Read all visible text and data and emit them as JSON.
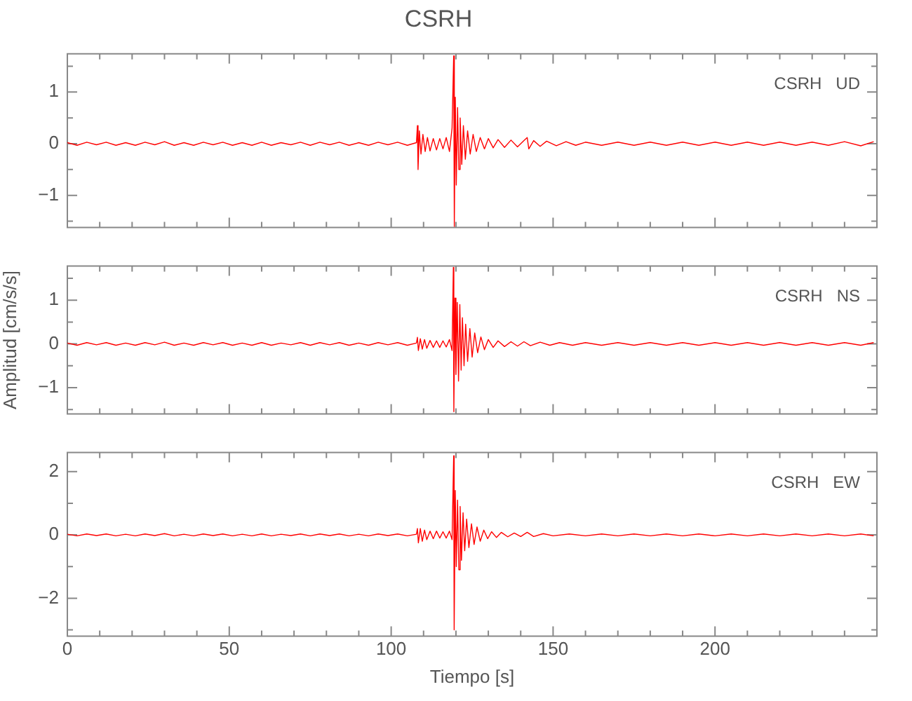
{
  "chart_data": [
    {
      "type": "line",
      "title": "CSRH",
      "annotations": [
        "CSRH   UD"
      ],
      "marker": "none",
      "tick_labels": "y",
      "xlim": [
        0,
        250
      ],
      "xticks": [
        0,
        {
          "value": 10,
          "label": null
        },
        {
          "value": 20,
          "label": null
        },
        {
          "value": 30,
          "label": null
        },
        {
          "value": 40,
          "label": null
        },
        50,
        {
          "value": 60,
          "label": null
        },
        {
          "value": 70,
          "label": null
        },
        {
          "value": 80,
          "label": null
        },
        {
          "value": 90,
          "label": null
        },
        100,
        {
          "value": 110,
          "label": null
        },
        {
          "value": 120,
          "label": null
        },
        {
          "value": 130,
          "label": null
        },
        {
          "value": 140,
          "label": null
        },
        150,
        {
          "value": 160,
          "label": null
        },
        {
          "value": 170,
          "label": null
        },
        {
          "value": 180,
          "label": null
        },
        {
          "value": 190,
          "label": null
        },
        200,
        {
          "value": 210,
          "label": null
        },
        {
          "value": 220,
          "label": null
        },
        {
          "value": 230,
          "label": null
        },
        {
          "value": 240,
          "label": null
        }
      ],
      "ylim": [
        -1.62,
        1.74
      ],
      "yticks": [
        {
          "value": -1.5,
          "label": null
        },
        -1,
        {
          "value": -0.5,
          "label": null
        },
        0,
        {
          "value": 0.5,
          "label": null
        },
        1,
        {
          "value": 1.5,
          "label": null
        }
      ],
      "series": [
        {
          "color": "#ff0000",
          "x": [
            0,
            3,
            6,
            9,
            12,
            15,
            18,
            21,
            24,
            27,
            30,
            33,
            36,
            39,
            42,
            45,
            48,
            51,
            54,
            57,
            60,
            63,
            66,
            69,
            72,
            75,
            78,
            81,
            84,
            87,
            90,
            93,
            96,
            99,
            102,
            105,
            107.8,
            108.1,
            108.3,
            108.7,
            109.2,
            109.8,
            110.5,
            111.2,
            112,
            113,
            114,
            115,
            116,
            117,
            118,
            118.8,
            119.3,
            119.5,
            119.8,
            120.1,
            120.5,
            120.9,
            121.3,
            121.8,
            122.3,
            122.9,
            123.6,
            124.4,
            125.3,
            126.3,
            127.5,
            128.8,
            130,
            131.5,
            133,
            135,
            137,
            139,
            141,
            142,
            142.5,
            144,
            146,
            148,
            151,
            154,
            157,
            160,
            165,
            170,
            175,
            180,
            185,
            190,
            195,
            200,
            205,
            210,
            215,
            220,
            225,
            230,
            235,
            240,
            245,
            249
          ],
          "values": [
            0.02,
            -0.03,
            0.03,
            -0.02,
            0.03,
            -0.03,
            0.02,
            -0.03,
            0.03,
            -0.02,
            0.04,
            -0.03,
            0.02,
            -0.03,
            0.03,
            -0.02,
            0.03,
            -0.03,
            0.02,
            -0.03,
            0.03,
            -0.03,
            0.02,
            -0.02,
            0.03,
            -0.03,
            0.03,
            -0.02,
            0.03,
            -0.03,
            0.02,
            -0.03,
            0.03,
            -0.02,
            0.03,
            -0.03,
            0.02,
            0.35,
            -0.5,
            0.25,
            -0.2,
            0.18,
            -0.15,
            0.12,
            -0.14,
            0.1,
            -0.12,
            0.1,
            -0.1,
            0.12,
            -0.15,
            0.3,
            1.7,
            -1.6,
            0.9,
            -0.8,
            0.7,
            -0.5,
            0.5,
            -0.4,
            0.35,
            -0.3,
            0.25,
            -0.2,
            0.18,
            -0.15,
            0.12,
            -0.1,
            0.1,
            -0.08,
            0.08,
            -0.07,
            0.07,
            -0.06,
            0.06,
            0.12,
            -0.1,
            0.06,
            -0.05,
            0.05,
            -0.04,
            0.04,
            -0.03,
            0.03,
            -0.03,
            0.03,
            -0.03,
            0.03,
            -0.03,
            0.03,
            -0.03,
            0.03,
            -0.03,
            0.03,
            -0.03,
            0.03,
            -0.03,
            0.03,
            -0.03,
            0.04,
            -0.04,
            0.04
          ]
        }
      ]
    },
    {
      "type": "line",
      "ylabel": "Amplitud [cm/s/s]",
      "annotations": [
        "CSRH   NS"
      ],
      "marker": "none",
      "tick_labels": "y",
      "xlim": [
        0,
        250
      ],
      "xticks": [
        0,
        {
          "value": 10,
          "label": null
        },
        {
          "value": 20,
          "label": null
        },
        {
          "value": 30,
          "label": null
        },
        {
          "value": 40,
          "label": null
        },
        50,
        {
          "value": 60,
          "label": null
        },
        {
          "value": 70,
          "label": null
        },
        {
          "value": 80,
          "label": null
        },
        {
          "value": 90,
          "label": null
        },
        100,
        {
          "value": 110,
          "label": null
        },
        {
          "value": 120,
          "label": null
        },
        {
          "value": 130,
          "label": null
        },
        {
          "value": 140,
          "label": null
        },
        150,
        {
          "value": 160,
          "label": null
        },
        {
          "value": 170,
          "label": null
        },
        {
          "value": 180,
          "label": null
        },
        {
          "value": 190,
          "label": null
        },
        200,
        {
          "value": 210,
          "label": null
        },
        {
          "value": 220,
          "label": null
        },
        {
          "value": 230,
          "label": null
        },
        {
          "value": 240,
          "label": null
        }
      ],
      "ylim": [
        -1.6,
        1.78
      ],
      "yticks": [
        {
          "value": -1.5,
          "label": null
        },
        -1,
        {
          "value": -0.5,
          "label": null
        },
        0,
        {
          "value": 0.5,
          "label": null
        },
        1,
        {
          "value": 1.5,
          "label": null
        }
      ],
      "series": [
        {
          "color": "#ff0000",
          "x": [
            0,
            3,
            6,
            9,
            12,
            15,
            18,
            21,
            24,
            27,
            30,
            33,
            36,
            39,
            42,
            45,
            48,
            51,
            54,
            57,
            60,
            63,
            66,
            69,
            72,
            75,
            78,
            81,
            84,
            87,
            90,
            93,
            96,
            99,
            102,
            105,
            107.8,
            108.1,
            108.4,
            109,
            109.6,
            110.3,
            111,
            112,
            113,
            114,
            115,
            116,
            117,
            118,
            118.8,
            119.2,
            119.35,
            119.7,
            120,
            120.4,
            120.8,
            121.2,
            121.6,
            122,
            122.5,
            123,
            123.6,
            124.3,
            125,
            125.8,
            126.7,
            127.7,
            128.8,
            130,
            131.5,
            133,
            135,
            137,
            139,
            141,
            143,
            146,
            149,
            152,
            156,
            160,
            165,
            170,
            175,
            180,
            185,
            190,
            195,
            200,
            205,
            210,
            215,
            220,
            225,
            230,
            235,
            240,
            245,
            249
          ],
          "values": [
            0.02,
            -0.03,
            0.03,
            -0.02,
            0.03,
            -0.03,
            0.02,
            -0.03,
            0.03,
            -0.02,
            0.04,
            -0.03,
            0.02,
            -0.03,
            0.03,
            -0.02,
            0.03,
            -0.03,
            0.02,
            -0.03,
            0.03,
            -0.03,
            0.02,
            -0.02,
            0.03,
            -0.03,
            0.03,
            -0.02,
            0.03,
            -0.03,
            0.02,
            -0.03,
            0.03,
            -0.02,
            0.03,
            -0.03,
            0.02,
            0.15,
            -0.15,
            0.12,
            -0.12,
            0.1,
            -0.1,
            0.08,
            -0.08,
            0.07,
            -0.08,
            0.07,
            -0.07,
            0.1,
            -0.15,
            1.75,
            -1.55,
            1.05,
            -0.7,
            0.95,
            -0.85,
            0.9,
            -0.6,
            0.6,
            -0.5,
            0.45,
            -0.4,
            0.35,
            -0.3,
            0.25,
            -0.2,
            0.16,
            -0.13,
            0.1,
            -0.08,
            0.07,
            -0.06,
            0.05,
            -0.05,
            0.05,
            -0.04,
            0.04,
            -0.03,
            0.03,
            -0.03,
            0.03,
            -0.03,
            0.03,
            -0.03,
            0.03,
            -0.03,
            0.03,
            -0.03,
            0.03,
            -0.03,
            0.03,
            -0.03,
            0.03,
            -0.03,
            0.03,
            -0.03,
            0.03,
            -0.03,
            0.03
          ]
        }
      ]
    },
    {
      "type": "line",
      "xlabel": "Tiempo [s]",
      "annotations": [
        "CSRH   EW"
      ],
      "marker": "none",
      "xlim": [
        0,
        250
      ],
      "xticks": [
        0,
        {
          "value": 10,
          "label": null
        },
        {
          "value": 20,
          "label": null
        },
        {
          "value": 30,
          "label": null
        },
        {
          "value": 40,
          "label": null
        },
        50,
        {
          "value": 60,
          "label": null
        },
        {
          "value": 70,
          "label": null
        },
        {
          "value": 80,
          "label": null
        },
        {
          "value": 90,
          "label": null
        },
        100,
        {
          "value": 110,
          "label": null
        },
        {
          "value": 120,
          "label": null
        },
        {
          "value": 130,
          "label": null
        },
        {
          "value": 140,
          "label": null
        },
        150,
        {
          "value": 160,
          "label": null
        },
        {
          "value": 170,
          "label": null
        },
        {
          "value": 180,
          "label": null
        },
        {
          "value": 190,
          "label": null
        },
        200,
        {
          "value": 210,
          "label": null
        },
        {
          "value": 220,
          "label": null
        },
        {
          "value": 230,
          "label": null
        },
        {
          "value": 240,
          "label": null
        }
      ],
      "ylim": [
        -3.2,
        2.6
      ],
      "yticks": [
        {
          "value": -3,
          "label": null
        },
        -2,
        {
          "value": -1,
          "label": null
        },
        0,
        {
          "value": 1,
          "label": null
        },
        2
      ],
      "series": [
        {
          "color": "#ff0000",
          "x": [
            0,
            3,
            6,
            9,
            12,
            15,
            18,
            21,
            24,
            27,
            30,
            33,
            36,
            39,
            42,
            45,
            48,
            51,
            54,
            57,
            60,
            63,
            66,
            69,
            72,
            75,
            78,
            81,
            84,
            87,
            90,
            93,
            96,
            99,
            102,
            105,
            107.8,
            108.1,
            108.4,
            109,
            109.6,
            110.3,
            111,
            112,
            113,
            114,
            115,
            116,
            117,
            118,
            118.8,
            119.3,
            119.45,
            119.8,
            120.1,
            120.5,
            120.9,
            121.3,
            121.7,
            122.2,
            122.7,
            123.3,
            124,
            124.8,
            125.6,
            126.5,
            127.5,
            128.6,
            129.8,
            131,
            132.5,
            134,
            136,
            138,
            140,
            142,
            144,
            147,
            150,
            155,
            160,
            165,
            170,
            175,
            180,
            185,
            190,
            195,
            200,
            205,
            210,
            215,
            220,
            225,
            230,
            235,
            240,
            245,
            249
          ],
          "values": [
            0.02,
            -0.03,
            0.03,
            -0.02,
            0.03,
            -0.03,
            0.02,
            -0.03,
            0.03,
            -0.02,
            0.04,
            -0.03,
            0.02,
            -0.03,
            0.03,
            -0.02,
            0.03,
            -0.03,
            0.02,
            -0.03,
            0.03,
            -0.03,
            0.02,
            -0.02,
            0.03,
            -0.03,
            0.03,
            -0.02,
            0.03,
            -0.03,
            0.02,
            -0.03,
            0.03,
            -0.02,
            0.03,
            -0.03,
            0.02,
            0.2,
            -0.25,
            0.2,
            -0.2,
            0.15,
            -0.15,
            0.12,
            -0.12,
            0.12,
            -0.1,
            0.1,
            -0.1,
            0.12,
            -0.15,
            2.5,
            -3.0,
            1.4,
            -1.0,
            1.1,
            -1.1,
            0.9,
            -0.8,
            0.7,
            -0.5,
            0.5,
            -0.4,
            0.35,
            -0.3,
            0.25,
            -0.2,
            0.15,
            -0.12,
            0.1,
            -0.08,
            0.08,
            -0.06,
            0.06,
            -0.05,
            0.08,
            -0.05,
            0.04,
            -0.03,
            0.03,
            -0.03,
            0.03,
            -0.03,
            0.03,
            -0.03,
            0.03,
            -0.03,
            0.03,
            -0.03,
            0.03,
            -0.03,
            0.03,
            -0.03,
            0.03,
            -0.03,
            0.03,
            -0.03,
            0.03,
            -0.03
          ]
        }
      ]
    }
  ]
}
